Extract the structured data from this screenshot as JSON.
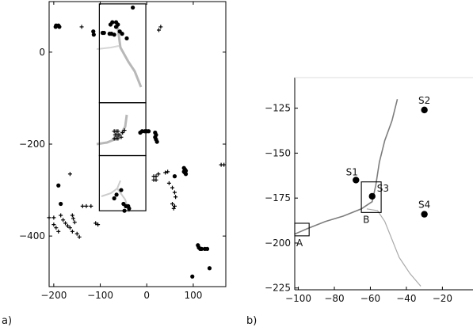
{
  "chart_data": [
    {
      "panel": "a)",
      "type": "scatter",
      "xlim": [
        -210,
        170
      ],
      "ylim": [
        -510,
        110
      ],
      "xticks": [
        -200,
        -100,
        0,
        100
      ],
      "yticks": [
        0,
        -200,
        -400
      ],
      "grid": false,
      "series": [
        {
          "marker": "dot",
          "points": [
            [
              -195,
              58
            ],
            [
              -190,
              58
            ],
            [
              -196,
              55
            ],
            [
              -188,
              55
            ],
            [
              -115,
              45
            ],
            [
              -114,
              38
            ],
            [
              -95,
              42
            ],
            [
              -92,
              42
            ],
            [
              -80,
              40
            ],
            [
              -76,
              40
            ],
            [
              -70,
              38
            ],
            [
              -78,
              60
            ],
            [
              -74,
              65
            ],
            [
              -66,
              65
            ],
            [
              -62,
              60
            ],
            [
              -66,
              55
            ],
            [
              -58,
              45
            ],
            [
              -53,
              40
            ],
            [
              -43,
              30
            ],
            [
              -30,
              97
            ],
            [
              -10,
              -172
            ],
            [
              -4,
              -172
            ],
            [
              0,
              -172
            ],
            [
              4,
              -172
            ],
            [
              -14,
              -175
            ],
            [
              18,
              -175
            ],
            [
              20,
              -180
            ],
            [
              18,
              -185
            ],
            [
              20,
              -190
            ],
            [
              22,
              -195
            ],
            [
              -50,
              -330
            ],
            [
              -45,
              -335
            ],
            [
              -40,
              -335
            ],
            [
              -38,
              -340
            ],
            [
              -48,
              -345
            ],
            [
              -70,
              -318
            ],
            [
              -65,
              -310
            ],
            [
              -55,
              -300
            ],
            [
              -190,
              -290
            ],
            [
              -185,
              -330
            ],
            [
              80,
              -252
            ],
            [
              82,
              -255
            ],
            [
              84,
              -258
            ],
            [
              80,
              -260
            ],
            [
              82,
              -262
            ],
            [
              84,
              -265
            ],
            [
              60,
              -270
            ],
            [
              110,
              -420
            ],
            [
              112,
              -425
            ],
            [
              115,
              -428
            ],
            [
              118,
              -428
            ],
            [
              125,
              -428
            ],
            [
              130,
              -428
            ],
            [
              98,
              -488
            ],
            [
              135,
              -470
            ]
          ]
        },
        {
          "marker": "plus",
          "points": [
            [
              -140,
              55
            ],
            [
              30,
              55
            ],
            [
              26,
              48
            ],
            [
              -165,
              -265
            ],
            [
              -70,
              -172
            ],
            [
              -66,
              -172
            ],
            [
              -62,
              -172
            ],
            [
              -68,
              -180
            ],
            [
              -64,
              -180
            ],
            [
              -60,
              -180
            ],
            [
              -70,
              -188
            ],
            [
              -66,
              -188
            ],
            [
              -62,
              -188
            ],
            [
              -52,
              -175
            ],
            [
              -48,
              -170
            ],
            [
              -55,
              -185
            ],
            [
              15,
              -270
            ],
            [
              20,
              -270
            ],
            [
              15,
              -278
            ],
            [
              20,
              -278
            ],
            [
              25,
              -265
            ],
            [
              40,
              -262
            ],
            [
              45,
              -260
            ],
            [
              48,
              -285
            ],
            [
              55,
              -295
            ],
            [
              60,
              -305
            ],
            [
              62,
              -315
            ],
            [
              55,
              -330
            ],
            [
              60,
              -335
            ],
            [
              58,
              -340
            ],
            [
              160,
              -245
            ],
            [
              166,
              -245
            ],
            [
              -210,
              -360
            ],
            [
              -200,
              -360
            ],
            [
              -185,
              -355
            ],
            [
              -180,
              -365
            ],
            [
              -175,
              -372
            ],
            [
              -170,
              -378
            ],
            [
              -160,
              -355
            ],
            [
              -158,
              -362
            ],
            [
              -155,
              -370
            ],
            [
              -165,
              -382
            ],
            [
              -160,
              -390
            ],
            [
              -150,
              -395
            ],
            [
              -145,
              -402
            ],
            [
              -200,
              -375
            ],
            [
              -195,
              -382
            ],
            [
              -190,
              -390
            ],
            [
              -138,
              -335
            ],
            [
              -130,
              -335
            ],
            [
              -120,
              -335
            ],
            [
              -110,
              -372
            ],
            [
              -105,
              -375
            ]
          ]
        }
      ],
      "insets": [
        {
          "x": [
            -102,
            -2
          ],
          "y": [
            -110,
            105
          ]
        },
        {
          "x": [
            -102,
            -2
          ],
          "y": [
            -225,
            -110
          ]
        },
        {
          "x": [
            -102,
            -2
          ],
          "y": [
            -345,
            -225
          ]
        }
      ]
    },
    {
      "panel": "b)",
      "type": "scatter",
      "xlim": [
        -102,
        -3
      ],
      "ylim": [
        -226,
        -108
      ],
      "xticks": [
        -100,
        -80,
        -60,
        -40,
        -20
      ],
      "yticks": [
        -125,
        -150,
        -175,
        -200,
        -225
      ],
      "grid": false,
      "points": [
        {
          "label": "S1",
          "x": -68,
          "y": -165
        },
        {
          "label": "S2",
          "x": -30,
          "y": -126
        },
        {
          "label": "S3",
          "x": -59,
          "y": -174
        },
        {
          "label": "S4",
          "x": -30,
          "y": -184
        }
      ],
      "boxes": [
        {
          "label": "A",
          "x": [
            -102,
            -94
          ],
          "y": [
            -196,
            -189
          ]
        },
        {
          "label": "B",
          "x": [
            -65,
            -54
          ],
          "y": [
            -183,
            -166
          ]
        }
      ]
    }
  ]
}
